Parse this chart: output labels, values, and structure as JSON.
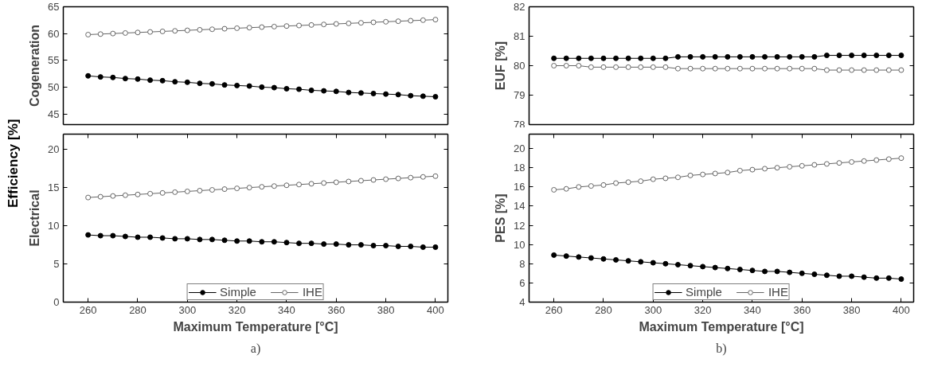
{
  "chart_data": [
    {
      "type": "line",
      "ylabel": "Cogeneration",
      "annotations": [
        "Efficiency [%]"
      ],
      "x": [
        260,
        265,
        270,
        275,
        280,
        285,
        290,
        295,
        300,
        305,
        310,
        315,
        320,
        325,
        330,
        335,
        340,
        345,
        350,
        355,
        360,
        365,
        370,
        375,
        380,
        385,
        390,
        395,
        400
      ],
      "xlim": [
        250,
        405
      ],
      "ylim": [
        43,
        65
      ],
      "yticks": [
        45,
        50,
        55,
        60,
        65
      ],
      "tick_labels": "y",
      "marker": "circle",
      "grid": false,
      "series": [
        {
          "color": "#000000",
          "values": [
            52.1,
            51.9,
            51.8,
            51.6,
            51.5,
            51.3,
            51.2,
            51.0,
            50.9,
            50.7,
            50.6,
            50.4,
            50.3,
            50.2,
            50.0,
            49.9,
            49.7,
            49.6,
            49.4,
            49.3,
            49.2,
            49.0,
            48.9,
            48.8,
            48.7,
            48.6,
            48.4,
            48.3,
            48.2
          ]
        },
        {
          "color": "#666666",
          "values": [
            59.8,
            59.9,
            60.0,
            60.1,
            60.2,
            60.3,
            60.4,
            60.5,
            60.6,
            60.7,
            60.8,
            60.9,
            61.0,
            61.1,
            61.2,
            61.3,
            61.4,
            61.5,
            61.6,
            61.7,
            61.8,
            61.9,
            62.0,
            62.1,
            62.2,
            62.3,
            62.4,
            62.5,
            62.6
          ]
        }
      ]
    },
    {
      "type": "line",
      "ylabel": "Electrical",
      "xlabel": "Maximum Temperature [°C]",
      "annotations": [
        "a)"
      ],
      "x": [
        260,
        265,
        270,
        275,
        280,
        285,
        290,
        295,
        300,
        305,
        310,
        315,
        320,
        325,
        330,
        335,
        340,
        345,
        350,
        355,
        360,
        365,
        370,
        375,
        380,
        385,
        390,
        395,
        400
      ],
      "xlim": [
        250,
        405
      ],
      "xticks": [
        260,
        280,
        300,
        320,
        340,
        360,
        380,
        400
      ],
      "ylim": [
        0,
        22
      ],
      "yticks": [
        0,
        5,
        10,
        15,
        20
      ],
      "marker": "circle",
      "grid": false,
      "legend": "bottom",
      "series": [
        {
          "name": "Simple",
          "color": "#000000",
          "values": [
            8.8,
            8.7,
            8.7,
            8.6,
            8.5,
            8.5,
            8.4,
            8.3,
            8.3,
            8.2,
            8.2,
            8.1,
            8.0,
            8.0,
            7.9,
            7.9,
            7.8,
            7.7,
            7.7,
            7.6,
            7.6,
            7.5,
            7.5,
            7.4,
            7.4,
            7.3,
            7.3,
            7.2,
            7.2
          ]
        },
        {
          "name": "IHE",
          "color": "#666666",
          "values": [
            13.7,
            13.8,
            13.9,
            14.0,
            14.1,
            14.2,
            14.3,
            14.4,
            14.5,
            14.6,
            14.7,
            14.8,
            14.9,
            15.0,
            15.1,
            15.2,
            15.3,
            15.4,
            15.5,
            15.6,
            15.7,
            15.8,
            15.9,
            16.0,
            16.1,
            16.2,
            16.3,
            16.4,
            16.5
          ]
        }
      ]
    },
    {
      "type": "line",
      "ylabel": "EUF [%]",
      "x": [
        260,
        265,
        270,
        275,
        280,
        285,
        290,
        295,
        300,
        305,
        310,
        315,
        320,
        325,
        330,
        335,
        340,
        345,
        350,
        355,
        360,
        365,
        370,
        375,
        380,
        385,
        390,
        395,
        400
      ],
      "xlim": [
        250,
        405
      ],
      "ylim": [
        78,
        82
      ],
      "yticks": [
        78,
        79,
        80,
        81,
        82
      ],
      "tick_labels": "y",
      "marker": "circle",
      "grid": false,
      "series": [
        {
          "color": "#000000",
          "values": [
            80.25,
            80.25,
            80.25,
            80.25,
            80.25,
            80.25,
            80.25,
            80.25,
            80.25,
            80.25,
            80.3,
            80.3,
            80.3,
            80.3,
            80.3,
            80.3,
            80.3,
            80.3,
            80.3,
            80.3,
            80.3,
            80.3,
            80.35,
            80.35,
            80.35,
            80.35,
            80.35,
            80.35,
            80.35
          ]
        },
        {
          "color": "#666666",
          "values": [
            80.0,
            80.0,
            80.0,
            79.95,
            79.95,
            79.95,
            79.95,
            79.95,
            79.95,
            79.95,
            79.9,
            79.9,
            79.9,
            79.9,
            79.9,
            79.9,
            79.9,
            79.9,
            79.9,
            79.9,
            79.9,
            79.9,
            79.85,
            79.85,
            79.85,
            79.85,
            79.85,
            79.85,
            79.85
          ]
        }
      ]
    },
    {
      "type": "line",
      "ylabel": "PES [%]",
      "xlabel": "Maximum Temperature [°C]",
      "annotations": [
        "b)"
      ],
      "x": [
        260,
        265,
        270,
        275,
        280,
        285,
        290,
        295,
        300,
        305,
        310,
        315,
        320,
        325,
        330,
        335,
        340,
        345,
        350,
        355,
        360,
        365,
        370,
        375,
        380,
        385,
        390,
        395,
        400
      ],
      "xlim": [
        250,
        405
      ],
      "xticks": [
        260,
        280,
        300,
        320,
        340,
        360,
        380,
        400
      ],
      "ylim": [
        4,
        21.5
      ],
      "yticks": [
        4,
        6,
        8,
        10,
        12,
        14,
        16,
        18,
        20
      ],
      "marker": "circle",
      "grid": false,
      "legend": "bottom",
      "series": [
        {
          "name": "Simple",
          "color": "#000000",
          "values": [
            8.9,
            8.8,
            8.7,
            8.6,
            8.5,
            8.4,
            8.3,
            8.2,
            8.1,
            8.0,
            7.9,
            7.8,
            7.7,
            7.6,
            7.5,
            7.4,
            7.3,
            7.2,
            7.2,
            7.1,
            7.0,
            6.9,
            6.8,
            6.7,
            6.7,
            6.6,
            6.5,
            6.5,
            6.4
          ]
        },
        {
          "name": "IHE",
          "color": "#666666",
          "values": [
            15.7,
            15.8,
            16.0,
            16.1,
            16.2,
            16.4,
            16.5,
            16.6,
            16.8,
            16.9,
            17.0,
            17.2,
            17.3,
            17.4,
            17.5,
            17.7,
            17.8,
            17.9,
            18.0,
            18.1,
            18.2,
            18.3,
            18.4,
            18.5,
            18.6,
            18.7,
            18.8,
            18.9,
            19.0
          ]
        }
      ]
    }
  ]
}
